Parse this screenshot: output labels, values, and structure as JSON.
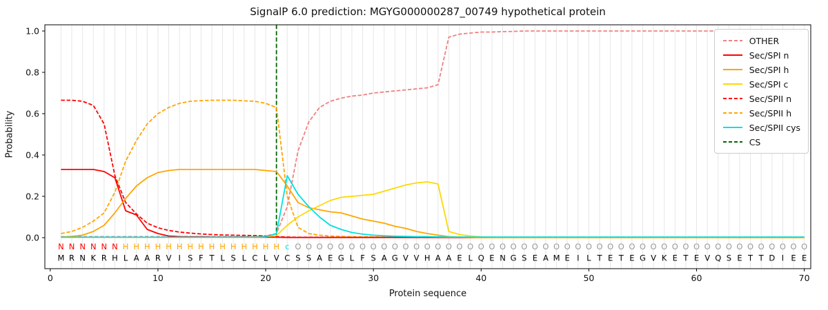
{
  "title": "SignalP 6.0 prediction: MGYG000000287_00749 hypothetical protein",
  "axes": {
    "xlabel": "Protein sequence",
    "ylabel": "Probability",
    "y_ticks": [
      {
        "v": 0.0,
        "label": "0.0"
      },
      {
        "v": 0.2,
        "label": "0.2"
      },
      {
        "v": 0.4,
        "label": "0.4"
      },
      {
        "v": 0.6,
        "label": "0.6"
      },
      {
        "v": 0.8,
        "label": "0.8"
      },
      {
        "v": 1.0,
        "label": "1.0"
      }
    ],
    "x_ticks": [
      {
        "v": 0,
        "label": "0"
      },
      {
        "v": 10,
        "label": "10"
      },
      {
        "v": 20,
        "label": "20"
      },
      {
        "v": 30,
        "label": "30"
      },
      {
        "v": 40,
        "label": "40"
      },
      {
        "v": 50,
        "label": "50"
      },
      {
        "v": 60,
        "label": "60"
      },
      {
        "v": 70,
        "label": "70"
      }
    ]
  },
  "legend": [
    {
      "id": "other",
      "label": "OTHER",
      "color": "#f08080",
      "dash": true
    },
    {
      "id": "spi-n",
      "label": "Sec/SPI n",
      "color": "#ff0000",
      "dash": false
    },
    {
      "id": "spi-h",
      "label": "Sec/SPI h",
      "color": "#ffa500",
      "dash": false
    },
    {
      "id": "spi-c",
      "label": "Sec/SPI c",
      "color": "#ffd700",
      "dash": false
    },
    {
      "id": "spii-n",
      "label": "Sec/SPII n",
      "color": "#ff0000",
      "dash": true
    },
    {
      "id": "spii-h",
      "label": "Sec/SPII h",
      "color": "#ffa500",
      "dash": true
    },
    {
      "id": "spii-cys",
      "label": "Sec/SPII cys",
      "color": "#00e0e0",
      "dash": false
    },
    {
      "id": "cs",
      "label": "CS",
      "color": "#006400",
      "dash": true
    }
  ],
  "chart_data": {
    "type": "line",
    "x_start": 1,
    "xlim": [
      -0.5,
      70.6
    ],
    "ylim": [
      -0.15,
      1.03
    ],
    "grid": true,
    "grid_color": "#e6e6e6",
    "cs_position": 21,
    "cs_color": "#006400",
    "sequence": "MRNKRHLAARVISFTLSLCLVCSSAEGLFSAGVVHAAELQENGSEAMEILTETEGVKETEVQSETTDIEE",
    "region_annotation": "NNNNNNHHHHHHHHHHHHHHHcOOOOOOOOOOOOOOOOOOOOOOOOOOOOOOOOOOOOOOOOOOOOOOOO",
    "region_colors": {
      "N": "#ff0000",
      "H": "#ffa500",
      "c": "#00e0e0",
      "O": "#999999"
    },
    "series": [
      {
        "id": "other",
        "name": "OTHER",
        "color": "#f08080",
        "dash": true,
        "values": [
          0.005,
          0.005,
          0.005,
          0.005,
          0.005,
          0.005,
          0.005,
          0.005,
          0.005,
          0.005,
          0.005,
          0.005,
          0.005,
          0.005,
          0.005,
          0.005,
          0.005,
          0.005,
          0.005,
          0.008,
          0.02,
          0.15,
          0.42,
          0.56,
          0.63,
          0.66,
          0.675,
          0.685,
          0.69,
          0.7,
          0.705,
          0.71,
          0.715,
          0.72,
          0.725,
          0.74,
          0.97,
          0.985,
          0.99,
          0.995,
          0.995,
          0.997,
          0.998,
          1.0,
          1.0,
          1.0,
          1.0,
          1.0,
          1.0,
          1.0,
          1.0,
          1.0,
          1.0,
          1.0,
          1.0,
          1.0,
          1.0,
          1.0,
          1.0,
          1.0,
          1.0,
          1.0,
          0.995,
          0.99,
          0.995,
          1.0,
          1.0,
          1.0,
          1.0,
          1.0
        ]
      },
      {
        "id": "spii-n",
        "name": "Sec/SPII n",
        "color": "#ff0000",
        "dash": true,
        "values": [
          0.665,
          0.665,
          0.66,
          0.64,
          0.55,
          0.3,
          0.17,
          0.115,
          0.07,
          0.048,
          0.035,
          0.027,
          0.022,
          0.018,
          0.015,
          0.013,
          0.012,
          0.011,
          0.01,
          0.008,
          0.005,
          0.003,
          0.002,
          0.002,
          0.002,
          0.002,
          0.002,
          0.002,
          0.002,
          0.002,
          0.002,
          0.002,
          0.002,
          0.002,
          0.002,
          0.002,
          0.002,
          0.002,
          0.002,
          0.002,
          0.002,
          0.002,
          0.002,
          0.002,
          0.002,
          0.002,
          0.002,
          0.002,
          0.002,
          0.002,
          0.002,
          0.002,
          0.002,
          0.002,
          0.002,
          0.002,
          0.002,
          0.002,
          0.002,
          0.002,
          0.002,
          0.002,
          0.002,
          0.002,
          0.002,
          0.002,
          0.002,
          0.002,
          0.002,
          0.002
        ]
      },
      {
        "id": "spii-h",
        "name": "Sec/SPII h",
        "color": "#ffa500",
        "dash": true,
        "values": [
          0.02,
          0.03,
          0.05,
          0.08,
          0.12,
          0.22,
          0.37,
          0.47,
          0.55,
          0.6,
          0.63,
          0.65,
          0.66,
          0.663,
          0.665,
          0.665,
          0.665,
          0.662,
          0.66,
          0.65,
          0.63,
          0.2,
          0.05,
          0.02,
          0.012,
          0.008,
          0.006,
          0.005,
          0.004,
          0.004,
          0.003,
          0.003,
          0.003,
          0.003,
          0.003,
          0.003,
          0.003,
          0.003,
          0.003,
          0.003,
          0.003,
          0.003,
          0.003,
          0.003,
          0.003,
          0.003,
          0.003,
          0.003,
          0.003,
          0.003,
          0.003,
          0.003,
          0.003,
          0.003,
          0.003,
          0.003,
          0.003,
          0.003,
          0.003,
          0.003,
          0.003,
          0.003,
          0.003,
          0.003,
          0.003,
          0.003,
          0.003,
          0.003,
          0.003,
          0.003
        ]
      },
      {
        "id": "spi-n",
        "name": "Sec/SPI n",
        "color": "#ff0000",
        "dash": false,
        "values": [
          0.33,
          0.33,
          0.33,
          0.33,
          0.32,
          0.29,
          0.13,
          0.11,
          0.04,
          0.02,
          0.008,
          0.005,
          0.004,
          0.004,
          0.003,
          0.003,
          0.003,
          0.003,
          0.002,
          0.002,
          0.002,
          0.001,
          0.001,
          0.001,
          0.001,
          0.001,
          0.001,
          0.001,
          0.001,
          0.001,
          0.001,
          0.001,
          0.001,
          0.001,
          0.001,
          0.001,
          0.001,
          0.001,
          0.001,
          0.001,
          0.001,
          0.001,
          0.001,
          0.001,
          0.001,
          0.001,
          0.001,
          0.001,
          0.001,
          0.001,
          0.001,
          0.001,
          0.001,
          0.001,
          0.001,
          0.001,
          0.001,
          0.001,
          0.001,
          0.001,
          0.001,
          0.001,
          0.001,
          0.001,
          0.001,
          0.001,
          0.001,
          0.001,
          0.001,
          0.001
        ]
      },
      {
        "id": "spi-h",
        "name": "Sec/SPI h",
        "color": "#ffa500",
        "dash": false,
        "values": [
          0.003,
          0.006,
          0.012,
          0.03,
          0.06,
          0.12,
          0.19,
          0.25,
          0.29,
          0.315,
          0.325,
          0.33,
          0.33,
          0.33,
          0.33,
          0.33,
          0.33,
          0.33,
          0.33,
          0.325,
          0.32,
          0.25,
          0.17,
          0.145,
          0.135,
          0.125,
          0.12,
          0.105,
          0.09,
          0.08,
          0.07,
          0.055,
          0.045,
          0.03,
          0.02,
          0.012,
          0.005,
          0.003,
          0.002,
          0.001,
          0.001,
          0.001,
          0.001,
          0.001,
          0.001,
          0.001,
          0.001,
          0.001,
          0.001,
          0.001,
          0.001,
          0.001,
          0.001,
          0.001,
          0.001,
          0.001,
          0.001,
          0.001,
          0.001,
          0.001,
          0.001,
          0.001,
          0.001,
          0.001,
          0.001,
          0.001,
          0.001,
          0.001,
          0.001,
          0.001
        ]
      },
      {
        "id": "spi-c",
        "name": "Sec/SPI c",
        "color": "#ffd700",
        "dash": false,
        "values": [
          0.002,
          0.002,
          0.002,
          0.002,
          0.002,
          0.002,
          0.002,
          0.002,
          0.002,
          0.002,
          0.002,
          0.002,
          0.002,
          0.002,
          0.002,
          0.002,
          0.002,
          0.002,
          0.003,
          0.005,
          0.01,
          0.06,
          0.1,
          0.13,
          0.155,
          0.18,
          0.195,
          0.2,
          0.205,
          0.21,
          0.225,
          0.24,
          0.255,
          0.265,
          0.27,
          0.26,
          0.03,
          0.015,
          0.008,
          0.004,
          0.002,
          0.002,
          0.002,
          0.002,
          0.002,
          0.002,
          0.002,
          0.002,
          0.002,
          0.002,
          0.002,
          0.002,
          0.002,
          0.002,
          0.002,
          0.002,
          0.002,
          0.002,
          0.002,
          0.002,
          0.002,
          0.002,
          0.002,
          0.002,
          0.002,
          0.002,
          0.002,
          0.002,
          0.002,
          0.002
        ]
      },
      {
        "id": "spii-cys",
        "name": "Sec/SPII cys",
        "color": "#00e0e0",
        "dash": false,
        "values": [
          0.002,
          0.002,
          0.002,
          0.002,
          0.002,
          0.002,
          0.002,
          0.002,
          0.002,
          0.002,
          0.002,
          0.002,
          0.002,
          0.002,
          0.002,
          0.002,
          0.002,
          0.002,
          0.002,
          0.004,
          0.02,
          0.3,
          0.21,
          0.15,
          0.1,
          0.06,
          0.04,
          0.025,
          0.017,
          0.012,
          0.009,
          0.007,
          0.006,
          0.005,
          0.005,
          0.004,
          0.003,
          0.003,
          0.003,
          0.003,
          0.003,
          0.003,
          0.003,
          0.003,
          0.003,
          0.003,
          0.003,
          0.003,
          0.003,
          0.003,
          0.003,
          0.003,
          0.003,
          0.003,
          0.003,
          0.003,
          0.003,
          0.003,
          0.003,
          0.003,
          0.003,
          0.003,
          0.003,
          0.003,
          0.003,
          0.003,
          0.003,
          0.003,
          0.003,
          0.003
        ]
      }
    ]
  }
}
